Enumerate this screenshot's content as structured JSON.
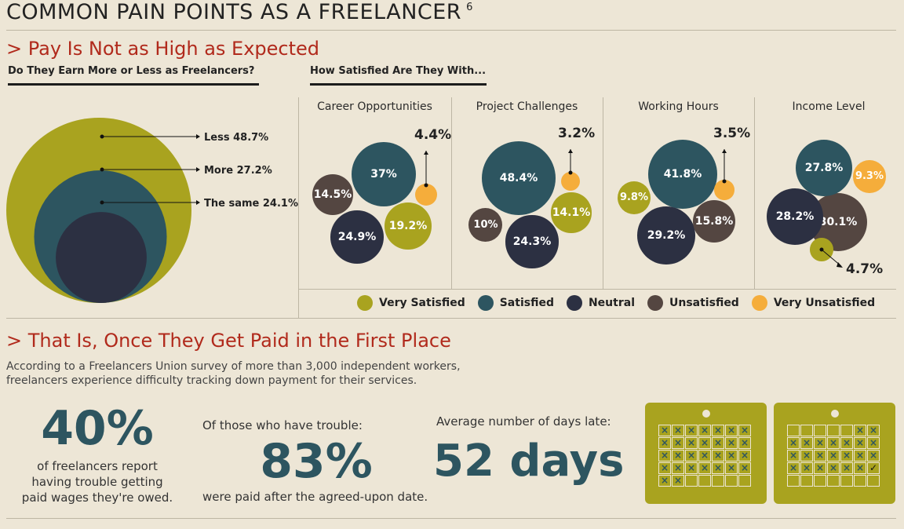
{
  "title": "COMMON PAIN POINTS AS A FREELANCER",
  "title_footnote": "6",
  "section1": {
    "heading": "> Pay Is Not as High as Expected",
    "left_subhead": "Do They Earn More or Less as Freelancers?",
    "right_subhead": "How Satisfied Are They With..."
  },
  "section2": {
    "heading": "> That Is, Once They Get Paid in the First Place",
    "intro_line1": "According to a Freelancers Union survey of more than 3,000 independent workers,",
    "intro_line2": "freelancers experience difficulty tracking down payment for their services.",
    "stat1": {
      "value": "40%",
      "line1": "of freelancers report",
      "line2": "having trouble getting",
      "line3": "paid wages they're owed."
    },
    "stat2": {
      "pre": "Of those who have trouble:",
      "value": "83%",
      "post": "were paid after the agreed-upon date."
    },
    "stat3": {
      "pre": "Average number of days late:",
      "value": "52 days"
    }
  },
  "colors": {
    "very_satisfied": "#a9a31f",
    "satisfied": "#2d5560",
    "neutral": "#2c3042",
    "unsatisfied": "#544641",
    "very_unsatisfied": "#f5ad3b",
    "accent_red": "#b12a1c"
  },
  "legend": [
    "Very Satisfied",
    "Satisfied",
    "Neutral",
    "Unsatisfied",
    "Very Unsatisfied"
  ],
  "calendar": {
    "late_days": 52
  },
  "chart_data": [
    {
      "type": "bubble",
      "subtitle": "Do They Earn More or Less as Freelancers?",
      "categories": [
        "Less",
        "More",
        "The same"
      ],
      "values": [
        48.7,
        27.2,
        24.1
      ],
      "labels": [
        "Less 48.7%",
        "More 27.2%",
        "The same 24.1%"
      ]
    },
    {
      "type": "bubble",
      "subtitle": "How Satisfied Are They With...",
      "categories": [
        "Very Satisfied",
        "Satisfied",
        "Neutral",
        "Unsatisfied",
        "Very Unsatisfied"
      ],
      "groups": [
        {
          "name": "Career Opportunities",
          "values": [
            19.2,
            37,
            24.9,
            14.5,
            4.4
          ],
          "labels": [
            "19.2%",
            "37%",
            "24.9%",
            "14.5%",
            "4.4%"
          ]
        },
        {
          "name": "Project Challenges",
          "values": [
            14.1,
            48.4,
            24.3,
            10,
            3.2
          ],
          "labels": [
            "14.1%",
            "48.4%",
            "24.3%",
            "10%",
            "3.2%"
          ]
        },
        {
          "name": "Working Hours",
          "values": [
            9.8,
            41.8,
            29.2,
            15.8,
            3.5
          ],
          "labels": [
            "9.8%",
            "41.8%",
            "29.2%",
            "15.8%",
            "3.5%"
          ]
        },
        {
          "name": "Income Level",
          "values": [
            4.7,
            27.8,
            28.2,
            30.1,
            9.3
          ],
          "labels": [
            "4.7%",
            "27.8%",
            "28.2%",
            "30.1%",
            "9.3%"
          ]
        }
      ]
    }
  ]
}
